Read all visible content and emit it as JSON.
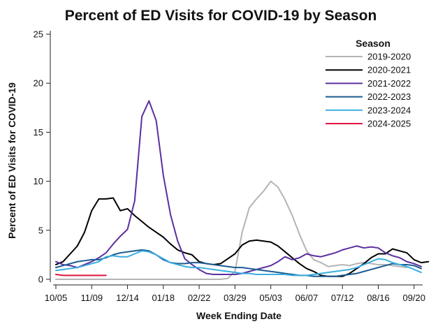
{
  "chart_data": {
    "type": "line",
    "title": "Percent of ED Visits for COVID-19 by Season",
    "xlabel": "Week Ending Date",
    "ylabel": "Percent of ED Visits for COVID-19",
    "ylim": [
      0,
      25
    ],
    "yticks": [
      0,
      5,
      10,
      15,
      20,
      25
    ],
    "xlim": [
      0,
      51
    ],
    "xticks": [
      {
        "label": "10/05",
        "x": 0
      },
      {
        "label": "11/09",
        "x": 5
      },
      {
        "label": "12/14",
        "x": 10
      },
      {
        "label": "01/18",
        "x": 15
      },
      {
        "label": "02/22",
        "x": 20
      },
      {
        "label": "03/29",
        "x": 25
      },
      {
        "label": "05/03",
        "x": 30
      },
      {
        "label": "06/07",
        "x": 35
      },
      {
        "label": "07/12",
        "x": 40
      },
      {
        "label": "08/16",
        "x": 45
      },
      {
        "label": "09/20",
        "x": 50
      }
    ],
    "grid": false,
    "legend": {
      "title": "Season",
      "position": "top-right"
    },
    "series": [
      {
        "name": "2019-2020",
        "color": "#b4b4b4",
        "values": [
          0,
          0,
          0,
          0,
          0,
          0,
          0,
          0,
          0,
          0,
          0,
          0,
          0,
          0,
          0,
          0,
          0,
          0,
          0,
          0,
          0,
          0,
          0,
          0,
          0.1,
          0.8,
          4.8,
          7.3,
          8.2,
          9.0,
          10.0,
          9.4,
          8.1,
          6.5,
          4.6,
          2.9,
          2.0,
          1.7,
          1.3,
          1.4,
          1.5,
          1.4,
          1.6,
          1.7,
          1.6,
          1.5,
          1.5,
          1.4,
          1.3,
          1.2
        ]
      },
      {
        "name": "2020-2021",
        "color": "#000000",
        "values": [
          1.5,
          1.8,
          2.6,
          3.4,
          4.8,
          7.0,
          8.2,
          8.2,
          8.3,
          7.0,
          7.2,
          6.5,
          5.9,
          5.3,
          4.8,
          4.3,
          3.6,
          3.0,
          2.7,
          2.5,
          1.8,
          1.6,
          1.5,
          1.6,
          2.1,
          2.6,
          3.5,
          3.9,
          4.0,
          3.9,
          3.8,
          3.4,
          2.8,
          2.2,
          1.6,
          1.1,
          0.8,
          0.4,
          0.3,
          0.3,
          0.3,
          0.6,
          1.1,
          1.6,
          2.2,
          2.6,
          2.6,
          3.1,
          2.9,
          2.7,
          2.0,
          1.7,
          1.8
        ]
      },
      {
        "name": "2021-2022",
        "color": "#5b2f9e",
        "values": [
          1.8,
          1.5,
          1.4,
          1.2,
          1.5,
          1.8,
          2.2,
          2.7,
          3.6,
          4.4,
          5.1,
          8.0,
          16.6,
          18.2,
          16.2,
          10.6,
          6.6,
          3.9,
          2.1,
          1.5,
          1.0,
          0.6,
          0.5,
          0.5,
          0.5,
          0.5,
          0.6,
          0.8,
          1.0,
          1.2,
          1.4,
          1.8,
          2.3,
          2.0,
          2.2,
          2.6,
          2.4,
          2.3,
          2.5,
          2.7,
          3.0,
          3.2,
          3.4,
          3.2,
          3.3,
          3.2,
          2.7,
          2.4,
          2.2,
          1.8,
          1.6,
          1.3
        ]
      },
      {
        "name": "2022-2023",
        "color": "#1b5a91",
        "values": [
          1.2,
          1.4,
          1.6,
          1.8,
          1.9,
          2.0,
          2.0,
          2.2,
          2.5,
          2.7,
          2.8,
          2.9,
          3.0,
          2.9,
          2.5,
          2.0,
          1.7,
          1.6,
          1.6,
          1.7,
          1.7,
          1.6,
          1.5,
          1.4,
          1.3,
          1.2,
          1.2,
          1.1,
          1.0,
          0.9,
          0.8,
          0.7,
          0.6,
          0.5,
          0.4,
          0.4,
          0.3,
          0.3,
          0.3,
          0.3,
          0.4,
          0.5,
          0.6,
          0.8,
          1.0,
          1.2,
          1.4,
          1.6,
          1.5,
          1.5,
          1.4,
          1.1
        ]
      },
      {
        "name": "2023-2024",
        "color": "#3aaee0",
        "values": [
          0.9,
          1.0,
          1.1,
          1.2,
          1.4,
          1.6,
          1.8,
          2.3,
          2.4,
          2.3,
          2.3,
          2.6,
          2.9,
          2.8,
          2.5,
          2.1,
          1.7,
          1.5,
          1.3,
          1.2,
          1.2,
          1.1,
          1.0,
          0.9,
          0.8,
          0.7,
          0.6,
          0.6,
          0.5,
          0.5,
          0.5,
          0.5,
          0.5,
          0.4,
          0.4,
          0.4,
          0.5,
          0.6,
          0.7,
          0.8,
          0.9,
          1.0,
          1.2,
          1.5,
          1.8,
          2.1,
          2.0,
          1.7,
          1.5,
          1.3,
          1.0,
          0.7
        ]
      },
      {
        "name": "2024-2025",
        "color": "#e0143c",
        "values": [
          0.5,
          0.4,
          0.4,
          0.4,
          0.4,
          0.4,
          0.4,
          0.4
        ]
      }
    ]
  }
}
